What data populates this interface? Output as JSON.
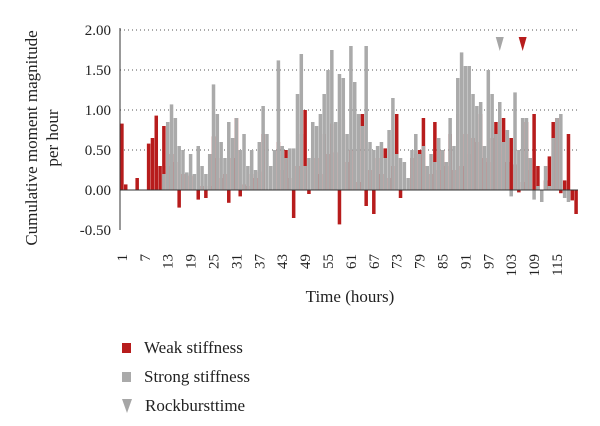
{
  "chart_data": {
    "type": "bar",
    "title": "",
    "xlabel": "Time (hours)",
    "ylabel": "Cumulative moment magnitude per hour",
    "ylim": [
      -0.5,
      2.0
    ],
    "yticks": [
      "2.00",
      "1.50",
      "1.00",
      "0.50",
      "0.00",
      "-0.50"
    ],
    "xlim": [
      1,
      120
    ],
    "xticks": [
      "1",
      "7",
      "13",
      "19",
      "25",
      "31",
      "37",
      "43",
      "49",
      "55",
      "61",
      "67",
      "73",
      "79",
      "85",
      "91",
      "97",
      "103",
      "109",
      "115"
    ],
    "grid": "dotted horizontal",
    "legend_position": "bottom-left",
    "series": [
      {
        "name": "Weak stiffness",
        "color": "#b71c1c",
        "x": [
          1,
          2,
          5,
          8,
          9,
          10,
          11,
          12,
          13,
          14,
          15,
          16,
          17,
          18,
          19,
          21,
          22,
          23,
          24,
          25,
          26,
          27,
          28,
          29,
          30,
          31,
          32,
          33,
          34,
          35,
          36,
          37,
          38,
          40,
          42,
          43,
          44,
          45,
          46,
          47,
          48,
          49,
          50,
          51,
          52,
          53,
          54,
          55,
          56,
          57,
          58,
          59,
          60,
          61,
          62,
          63,
          64,
          65,
          66,
          67,
          68,
          69,
          70,
          71,
          72,
          73,
          74,
          77,
          78,
          79,
          80,
          81,
          82,
          83,
          84,
          85,
          86,
          87,
          88,
          89,
          90,
          91,
          92,
          93,
          94,
          95,
          96,
          97,
          98,
          99,
          100,
          101,
          102,
          103,
          104,
          105,
          106,
          107,
          108,
          109,
          110,
          112,
          113,
          114,
          115,
          116,
          117,
          118,
          119,
          120
        ],
        "values": [
          0.83,
          0.07,
          0.15,
          0.58,
          0.65,
          0.93,
          0.3,
          0.8,
          0.3,
          0.45,
          0.35,
          -0.22,
          0.2,
          0.2,
          0.18,
          -0.12,
          0.05,
          -0.1,
          0.05,
          0.67,
          0.4,
          0.15,
          0.2,
          -0.16,
          0.4,
          0.9,
          -0.08,
          0.07,
          0.05,
          0.2,
          0.15,
          0.23,
          0.7,
          0.25,
          0.6,
          0.25,
          0.5,
          0.15,
          -0.35,
          0.3,
          0.7,
          1.0,
          -0.05,
          0.5,
          0.4,
          0.2,
          0.7,
          0.45,
          0.83,
          0.47,
          -0.43,
          0.88,
          0.35,
          0.5,
          0.5,
          0.1,
          0.95,
          -0.2,
          0.25,
          -0.3,
          0.4,
          0.2,
          0.52,
          0.15,
          0.3,
          0.95,
          -0.1,
          0.4,
          0.45,
          0.5,
          0.9,
          0.25,
          0.2,
          0.85,
          0.25,
          0.5,
          0.3,
          0.7,
          0.25,
          0.95,
          0.3,
          0.7,
          0.45,
          0.65,
          0.6,
          0.95,
          0.4,
          0.35,
          0.65,
          0.85,
          0.45,
          0.9,
          0.35,
          0.65,
          0.32,
          -0.03,
          0.1,
          0.85,
          0.25,
          0.95,
          0.3,
          0.12,
          0.42,
          0.85,
          0.9,
          -0.04,
          0.12,
          0.7,
          -0.13,
          -0.3
        ]
      },
      {
        "name": "Strong stiffness",
        "color": "#aaaaaa",
        "x": [
          12,
          13,
          14,
          15,
          16,
          17,
          18,
          19,
          20,
          21,
          22,
          23,
          24,
          25,
          26,
          27,
          28,
          29,
          30,
          31,
          32,
          33,
          34,
          35,
          36,
          37,
          38,
          39,
          40,
          41,
          42,
          43,
          44,
          45,
          46,
          47,
          48,
          49,
          50,
          51,
          52,
          53,
          54,
          55,
          56,
          57,
          58,
          59,
          60,
          61,
          62,
          63,
          64,
          65,
          66,
          67,
          68,
          69,
          70,
          71,
          72,
          73,
          74,
          75,
          76,
          77,
          78,
          79,
          80,
          81,
          82,
          83,
          84,
          85,
          86,
          87,
          88,
          89,
          90,
          91,
          92,
          93,
          94,
          95,
          96,
          97,
          98,
          99,
          100,
          101,
          102,
          103,
          104,
          105,
          106,
          107,
          108,
          109,
          110,
          111,
          112,
          113,
          114,
          115,
          116,
          117,
          118
        ],
        "values": [
          0.2,
          0.85,
          1.07,
          0.9,
          0.55,
          0.5,
          0.22,
          0.45,
          0.2,
          0.55,
          0.3,
          0.2,
          0.45,
          1.32,
          0.95,
          0.6,
          0.4,
          0.85,
          0.65,
          0.9,
          0.5,
          0.7,
          0.3,
          0.5,
          0.25,
          0.6,
          1.05,
          0.7,
          0.3,
          0.5,
          1.62,
          0.55,
          0.4,
          0.52,
          0.52,
          1.2,
          1.7,
          0.3,
          0.4,
          0.85,
          0.8,
          0.95,
          1.2,
          1.5,
          1.75,
          0.85,
          1.45,
          1.4,
          0.7,
          1.8,
          1.35,
          0.95,
          0.8,
          1.8,
          0.6,
          0.5,
          0.55,
          0.6,
          0.4,
          0.75,
          1.15,
          0.45,
          0.4,
          0.35,
          0.15,
          0.5,
          0.7,
          0.45,
          0.55,
          0.3,
          0.45,
          0.35,
          0.65,
          0.5,
          0.35,
          0.9,
          0.55,
          1.4,
          1.72,
          1.55,
          1.55,
          1.2,
          1.05,
          1.1,
          0.55,
          1.5,
          1.2,
          0.7,
          1.1,
          0.6,
          0.75,
          -0.08,
          1.22,
          0.5,
          0.9,
          0.9,
          0.4,
          -0.12,
          0.05,
          -0.15,
          0.3,
          0.05,
          0.65,
          0.9,
          0.95,
          -0.1,
          -0.15
        ]
      }
    ],
    "annotations": [
      {
        "label": "Rockbursttime",
        "x": 100,
        "color": "#a6a6a6"
      },
      {
        "label": "Rockbursttime",
        "x": 106,
        "color": "#b71c1c"
      }
    ]
  },
  "legend": {
    "weak": "Weak stiffness",
    "strong": "Strong stiffness",
    "rockburst": "Rockbursttime"
  }
}
